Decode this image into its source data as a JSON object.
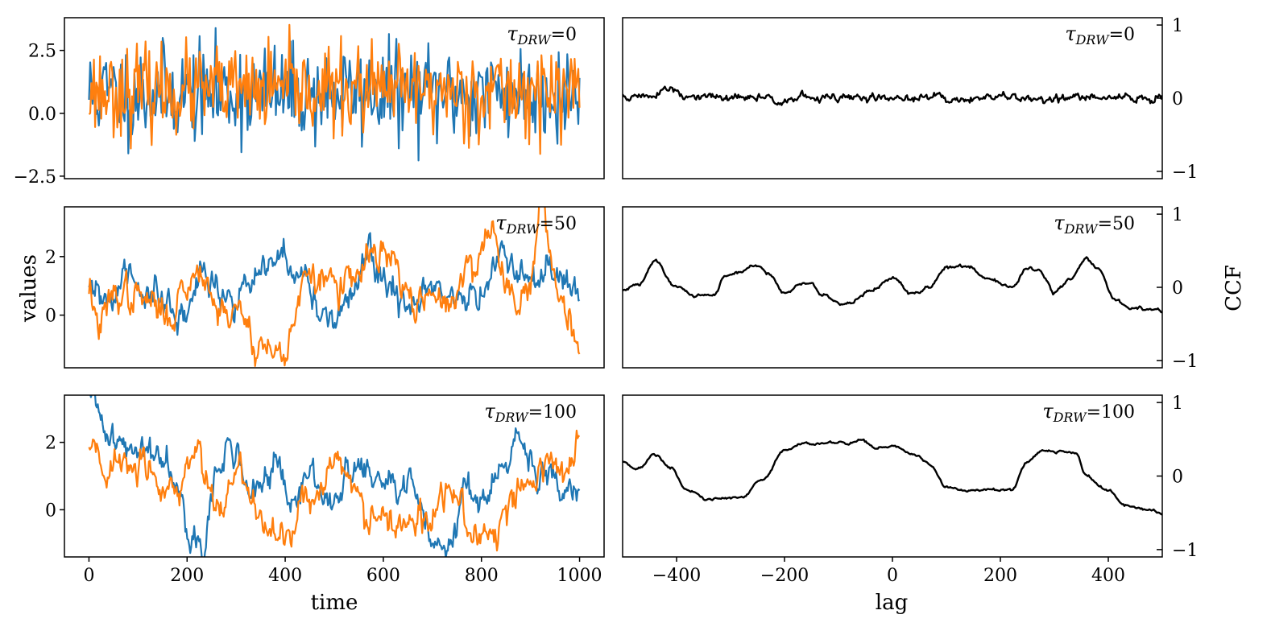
{
  "figure": {
    "left_xlabel": "time",
    "left_ylabel": "values",
    "right_xlabel": "lag",
    "right_ylabel": "CCF",
    "tau_symbol": "τ",
    "tau_subscript": "DRW"
  },
  "colors": {
    "series_a": "#1f77b4",
    "series_b": "#ff7f0e",
    "ccf": "#000000",
    "axes": "#000000"
  },
  "chart_data": [
    {
      "type": "line",
      "panel": "light curves",
      "annotation_value": "=0",
      "xlim": [
        -50,
        1050
      ],
      "ylim": [
        -2.6,
        3.8
      ],
      "yticks": [
        -2.5,
        0.0,
        2.5
      ],
      "ytick_labels": [
        "−2.5",
        "0.0",
        "2.5"
      ],
      "xticks": [],
      "xtick_labels": [],
      "x_range": [
        0,
        1000
      ],
      "series": [
        {
          "color_key": "series_a",
          "tau": 0,
          "mean": 0.8,
          "std": 0.95,
          "n": 400,
          "seed": 11,
          "min": -2.3,
          "max": 3.5
        },
        {
          "color_key": "series_b",
          "tau": 0,
          "mean": 0.9,
          "std": 0.85,
          "n": 400,
          "seed": 23,
          "min": -1.7,
          "max": 3.6
        }
      ]
    },
    {
      "type": "line",
      "panel": "light curves",
      "annotation_value": "=50",
      "xlim": [
        -50,
        1050
      ],
      "ylim": [
        -1.8,
        3.7
      ],
      "yticks": [
        0,
        2
      ],
      "ytick_labels": [
        "0",
        "2"
      ],
      "xticks": [],
      "xtick_labels": [],
      "x_range": [
        0,
        1000
      ],
      "series": [
        {
          "color_key": "series_a",
          "anchors": [
            [
              0,
              0.6
            ],
            [
              40,
              0.5
            ],
            [
              80,
              1.3
            ],
            [
              140,
              0.5
            ],
            [
              180,
              -0.3
            ],
            [
              240,
              1.5
            ],
            [
              290,
              0.6
            ],
            [
              350,
              1.3
            ],
            [
              390,
              1.8
            ],
            [
              440,
              1.2
            ],
            [
              480,
              0.0
            ],
            [
              540,
              0.5
            ],
            [
              560,
              1.8
            ],
            [
              620,
              1.0
            ],
            [
              660,
              0.2
            ],
            [
              700,
              0.8
            ],
            [
              740,
              0.2
            ],
            [
              800,
              0.8
            ],
            [
              840,
              2.3
            ],
            [
              900,
              1.0
            ],
            [
              950,
              1.2
            ],
            [
              1000,
              0.4
            ]
          ],
          "noise": 0.25,
          "seed": 31
        },
        {
          "color_key": "series_b",
          "anchors": [
            [
              0,
              1.0
            ],
            [
              20,
              -0.4
            ],
            [
              60,
              0.8
            ],
            [
              110,
              0.5
            ],
            [
              160,
              0.0
            ],
            [
              200,
              1.0
            ],
            [
              230,
              1.8
            ],
            [
              260,
              0.3
            ],
            [
              310,
              0.0
            ],
            [
              350,
              -1.0
            ],
            [
              390,
              -1.4
            ],
            [
              440,
              1.0
            ],
            [
              480,
              1.2
            ],
            [
              540,
              1.0
            ],
            [
              580,
              2.1
            ],
            [
              620,
              1.8
            ],
            [
              650,
              0.5
            ],
            [
              700,
              0.4
            ],
            [
              740,
              0.6
            ],
            [
              760,
              1.2
            ],
            [
              820,
              2.8
            ],
            [
              860,
              0.8
            ],
            [
              900,
              1.0
            ],
            [
              920,
              3.5
            ],
            [
              960,
              0.8
            ],
            [
              1000,
              -0.8
            ]
          ],
          "noise": 0.25,
          "seed": 37
        }
      ]
    },
    {
      "type": "line",
      "panel": "light curves",
      "annotation_value": "=100",
      "xlim": [
        -50,
        1050
      ],
      "ylim": [
        -1.4,
        3.4
      ],
      "yticks": [
        0,
        2
      ],
      "ytick_labels": [
        "0",
        "2"
      ],
      "xticks": [
        0,
        200,
        400,
        600,
        800,
        1000
      ],
      "xtick_labels": [
        "0",
        "200",
        "400",
        "600",
        "800",
        "1000"
      ],
      "x_range": [
        0,
        1000
      ],
      "series": [
        {
          "color_key": "series_a",
          "anchors": [
            [
              0,
              3.2
            ],
            [
              40,
              2.4
            ],
            [
              80,
              1.7
            ],
            [
              140,
              1.8
            ],
            [
              180,
              1.2
            ],
            [
              210,
              -0.8
            ],
            [
              230,
              -1.0
            ],
            [
              260,
              0.8
            ],
            [
              290,
              2.0
            ],
            [
              330,
              0.5
            ],
            [
              380,
              1.3
            ],
            [
              410,
              0.0
            ],
            [
              450,
              1.0
            ],
            [
              500,
              0.3
            ],
            [
              540,
              1.2
            ],
            [
              600,
              0.8
            ],
            [
              660,
              0.5
            ],
            [
              700,
              -0.8
            ],
            [
              720,
              -1.0
            ],
            [
              770,
              0.5
            ],
            [
              810,
              0.5
            ],
            [
              850,
              1.2
            ],
            [
              880,
              2.0
            ],
            [
              920,
              0.8
            ],
            [
              960,
              0.8
            ],
            [
              1000,
              1.0
            ]
          ],
          "noise": 0.2,
          "seed": 41
        },
        {
          "color_key": "series_b",
          "anchors": [
            [
              0,
              1.7
            ],
            [
              40,
              1.2
            ],
            [
              100,
              1.3
            ],
            [
              150,
              0.5
            ],
            [
              200,
              1.0
            ],
            [
              220,
              1.8
            ],
            [
              260,
              0.3
            ],
            [
              300,
              1.3
            ],
            [
              350,
              -0.2
            ],
            [
              400,
              -0.5
            ],
            [
              460,
              0.5
            ],
            [
              500,
              1.2
            ],
            [
              540,
              0.8
            ],
            [
              580,
              -0.5
            ],
            [
              620,
              -0.2
            ],
            [
              680,
              -0.5
            ],
            [
              720,
              0.5
            ],
            [
              760,
              0.0
            ],
            [
              790,
              -0.8
            ],
            [
              820,
              -1.0
            ],
            [
              860,
              0.5
            ],
            [
              900,
              0.8
            ],
            [
              940,
              1.5
            ],
            [
              980,
              1.0
            ],
            [
              1000,
              1.7
            ]
          ],
          "noise": 0.22,
          "seed": 43
        }
      ]
    },
    {
      "type": "line",
      "panel": "CCF",
      "annotation_value": "=0",
      "xlim": [
        -500,
        500
      ],
      "ylim": [
        -1.1,
        1.1
      ],
      "yticks": [
        -1,
        0,
        1
      ],
      "ytick_labels": [
        "−1",
        "0",
        "1"
      ],
      "xticks": [],
      "xtick_labels": [],
      "series": [
        {
          "color_key": "ccf",
          "anchors": [
            [
              -500,
              0.02
            ],
            [
              -460,
              0.02
            ],
            [
              -420,
              0.12
            ],
            [
              -380,
              0.0
            ],
            [
              -300,
              0.0
            ],
            [
              -200,
              0.0
            ],
            [
              -100,
              0.0
            ],
            [
              0,
              0.0
            ],
            [
              100,
              0.0
            ],
            [
              200,
              0.0
            ],
            [
              300,
              0.0
            ],
            [
              400,
              0.0
            ],
            [
              500,
              0.0
            ]
          ],
          "noise": 0.025,
          "seed": 51
        }
      ]
    },
    {
      "type": "line",
      "panel": "CCF",
      "annotation_value": "=50",
      "xlim": [
        -500,
        500
      ],
      "ylim": [
        -1.1,
        1.1
      ],
      "yticks": [
        -1,
        0,
        1
      ],
      "ytick_labels": [
        "−1",
        "0",
        "1"
      ],
      "xticks": [],
      "xtick_labels": [],
      "series": [
        {
          "color_key": "ccf",
          "anchors": [
            [
              -500,
              -0.05
            ],
            [
              -470,
              0.05
            ],
            [
              -440,
              0.35
            ],
            [
              -400,
              0.0
            ],
            [
              -360,
              -0.12
            ],
            [
              -330,
              -0.1
            ],
            [
              -310,
              0.15
            ],
            [
              -290,
              0.2
            ],
            [
              -250,
              0.3
            ],
            [
              -230,
              0.2
            ],
            [
              -200,
              -0.08
            ],
            [
              -170,
              0.05
            ],
            [
              -150,
              0.05
            ],
            [
              -130,
              -0.1
            ],
            [
              -90,
              -0.25
            ],
            [
              -40,
              -0.05
            ],
            [
              0,
              0.15
            ],
            [
              40,
              -0.1
            ],
            [
              70,
              0.0
            ],
            [
              100,
              0.28
            ],
            [
              140,
              0.3
            ],
            [
              180,
              0.1
            ],
            [
              220,
              0.0
            ],
            [
              250,
              0.25
            ],
            [
              270,
              0.25
            ],
            [
              300,
              -0.05
            ],
            [
              330,
              0.1
            ],
            [
              360,
              0.4
            ],
            [
              380,
              0.25
            ],
            [
              410,
              -0.15
            ],
            [
              440,
              -0.3
            ],
            [
              470,
              -0.3
            ],
            [
              500,
              -0.32
            ]
          ],
          "noise": 0.01,
          "seed": 61
        }
      ]
    },
    {
      "type": "line",
      "panel": "CCF",
      "annotation_value": "=100",
      "xlim": [
        -500,
        500
      ],
      "ylim": [
        -1.1,
        1.1
      ],
      "yticks": [
        -1,
        0,
        1
      ],
      "ytick_labels": [
        "−1",
        "0",
        "1"
      ],
      "xticks": [
        -400,
        -200,
        0,
        200,
        400
      ],
      "xtick_labels": [
        "−400",
        "−200",
        "0",
        "200",
        "400"
      ],
      "series": [
        {
          "color_key": "ccf",
          "anchors": [
            [
              -500,
              0.2
            ],
            [
              -470,
              0.1
            ],
            [
              -440,
              0.3
            ],
            [
              -410,
              0.1
            ],
            [
              -380,
              -0.2
            ],
            [
              -340,
              -0.32
            ],
            [
              -310,
              -0.3
            ],
            [
              -280,
              -0.3
            ],
            [
              -240,
              -0.05
            ],
            [
              -200,
              0.35
            ],
            [
              -160,
              0.45
            ],
            [
              -120,
              0.45
            ],
            [
              -80,
              0.45
            ],
            [
              -60,
              0.5
            ],
            [
              -30,
              0.38
            ],
            [
              0,
              0.4
            ],
            [
              40,
              0.3
            ],
            [
              70,
              0.15
            ],
            [
              100,
              -0.15
            ],
            [
              140,
              -0.2
            ],
            [
              180,
              -0.18
            ],
            [
              200,
              -0.2
            ],
            [
              220,
              -0.18
            ],
            [
              250,
              0.2
            ],
            [
              280,
              0.35
            ],
            [
              310,
              0.35
            ],
            [
              340,
              0.3
            ],
            [
              360,
              0.0
            ],
            [
              400,
              -0.2
            ],
            [
              430,
              -0.4
            ],
            [
              470,
              -0.45
            ],
            [
              500,
              -0.52
            ]
          ],
          "noise": 0.008,
          "seed": 71
        }
      ]
    }
  ]
}
